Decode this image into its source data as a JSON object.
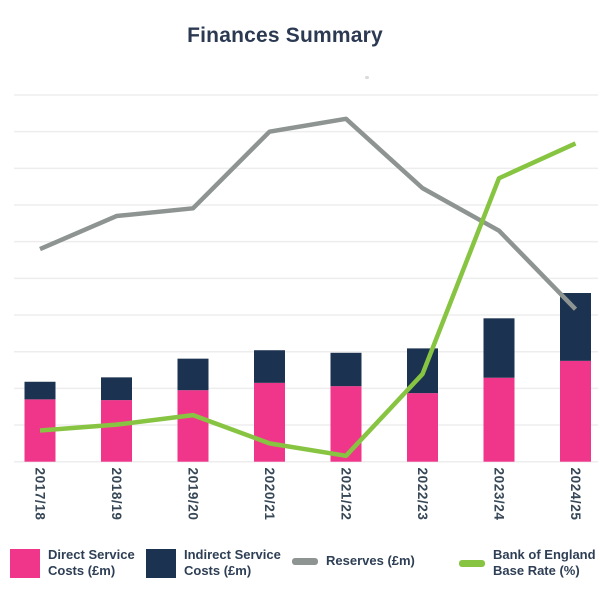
{
  "title": "Finances Summary",
  "chart_data": {
    "type": "bar",
    "subtype": "stacked-bars-with-lines",
    "title": "Finances Summary",
    "categories": [
      "2017/18",
      "2018/19",
      "2019/20",
      "2020/21",
      "2021/22",
      "2022/23",
      "2023/24",
      "2024/25"
    ],
    "series": [
      {
        "id": "direct-service-costs",
        "name": "Direct Service Costs (£m)",
        "type": "bar",
        "stack": "costs",
        "color": "#F0368A",
        "values": [
          1.7,
          1.68,
          1.95,
          2.15,
          2.06,
          1.87,
          2.29,
          2.75
        ]
      },
      {
        "id": "indirect-service-costs",
        "name": "Indirect Service Costs (£m)",
        "type": "bar",
        "stack": "costs",
        "color": "#1B3250",
        "values": [
          0.48,
          0.62,
          0.86,
          0.89,
          0.91,
          1.22,
          1.62,
          1.85
        ]
      },
      {
        "id": "reserves",
        "name": "Reserves (£m)",
        "type": "line",
        "color": "#8E9492",
        "values": [
          5.8,
          6.7,
          6.91,
          9.0,
          9.35,
          7.46,
          6.3,
          4.16
        ]
      },
      {
        "id": "bank-of-england-base-rate",
        "name": "Bank of England Base Rate (%)",
        "type": "line",
        "color": "#87C441",
        "values": [
          0.85,
          1.01,
          1.27,
          0.5,
          0.16,
          2.39,
          7.73,
          8.68
        ]
      }
    ],
    "xlabel": "",
    "ylabel": "",
    "ylim": [
      0,
      10
    ],
    "y_units": "gridline intervals (no y-axis tick labels shown in chart)",
    "grid": true,
    "gridline_count": 11,
    "legend_position": "bottom",
    "x_label_rotation_deg": 90,
    "colors": {
      "gridline": "#EDEDEE",
      "title_text": "#2B3A52",
      "axis_label_text": "#374756",
      "legend_text": "#2E3F55"
    }
  },
  "legend": {
    "items": [
      {
        "id": "direct-service-costs",
        "swatch": "square",
        "color": "#F0368A",
        "line1": "Direct Service",
        "line2": "Costs (£m)"
      },
      {
        "id": "indirect-service-costs",
        "swatch": "square",
        "color": "#1B3250",
        "line1": "Indirect Service",
        "line2": "Costs (£m)"
      },
      {
        "id": "reserves",
        "swatch": "dash",
        "color": "#8E9492",
        "line1": "Reserves (£m)",
        "line2": ""
      },
      {
        "id": "bank-of-england-base-rate",
        "swatch": "dash",
        "color": "#87C441",
        "line1": "Bank of England",
        "line2": "Base Rate (%)"
      }
    ]
  }
}
